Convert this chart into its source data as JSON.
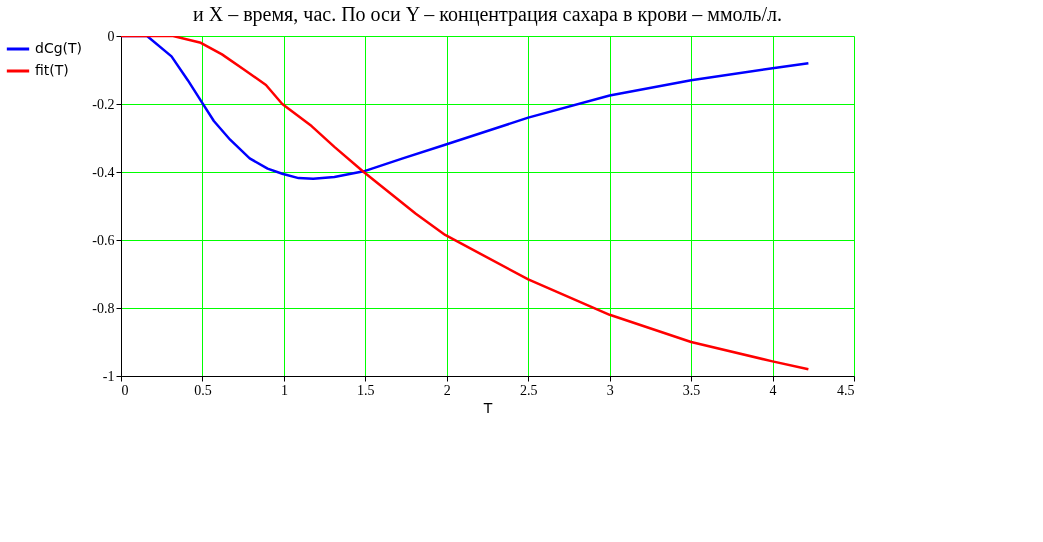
{
  "chart_data": {
    "type": "line",
    "annotations": [
      "и X – время, час. По оси Y – концентрация сахара в крови – ммоль/л."
    ],
    "xlabel": "T",
    "xlim": [
      0,
      4.5
    ],
    "xticks": [
      0,
      0.5,
      1,
      1.5,
      2,
      2.5,
      3,
      3.5,
      4,
      4.5
    ],
    "ylim": [
      -1,
      0
    ],
    "yticks": [
      -1,
      -0.8,
      -0.6,
      -0.4,
      -0.2,
      0
    ],
    "grid": true,
    "legend": "left",
    "line_style": "solid",
    "marker": "none",
    "series": [
      {
        "name": "dCg(T)",
        "color": "#0000ff",
        "x": [
          0,
          0.08,
          0.16,
          0.31,
          0.41,
          0.49,
          0.57,
          0.67,
          0.79,
          0.9,
          0.99,
          1.09,
          1.18,
          1.31,
          1.49,
          1.73,
          1.99,
          2.5,
          3,
          3.5,
          4,
          4.22
        ],
        "values": [
          0,
          0,
          0,
          -0.06,
          -0.13,
          -0.19,
          -0.25,
          -0.305,
          -0.36,
          -0.39,
          -0.405,
          -0.418,
          -0.42,
          -0.415,
          -0.398,
          -0.36,
          -0.32,
          -0.24,
          -0.175,
          -0.13,
          -0.095,
          -0.08
        ]
      },
      {
        "name": "fit(T)",
        "color": "#ff0000",
        "x": [
          0,
          0.15,
          0.32,
          0.49,
          0.62,
          0.75,
          0.89,
          0.99,
          1.17,
          1.31,
          1.49,
          1.81,
          1.99,
          2.5,
          3,
          3.5,
          4,
          4.22
        ],
        "values": [
          0,
          0,
          0,
          -0.02,
          -0.054,
          -0.097,
          -0.144,
          -0.2,
          -0.265,
          -0.326,
          -0.4,
          -0.523,
          -0.585,
          -0.716,
          -0.82,
          -0.9,
          -0.957,
          -0.98
        ]
      }
    ]
  }
}
